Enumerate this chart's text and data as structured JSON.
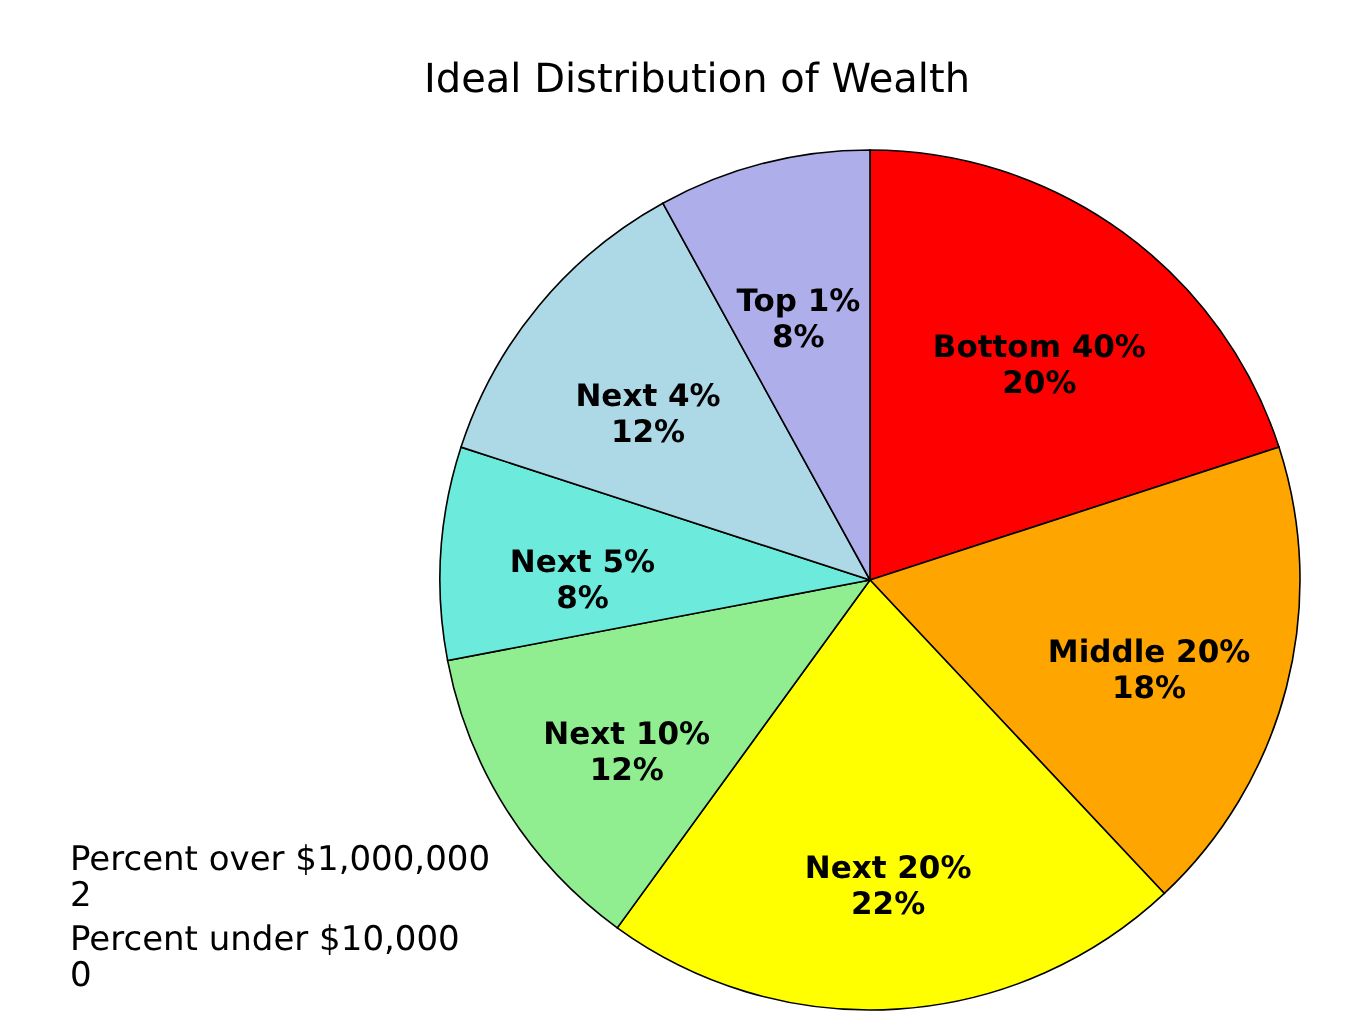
{
  "chart_data": {
    "type": "pie",
    "title": "Ideal Distribution of Wealth",
    "categories": [
      "Bottom 40%",
      "Middle 20%",
      "Next 20%",
      "Next 10%",
      "Next 5%",
      "Next 4%",
      "Top 1%"
    ],
    "values": [
      20,
      18,
      22,
      12,
      8,
      12,
      8
    ],
    "value_labels": [
      "20%",
      "18%",
      "22%",
      "12%",
      "8%",
      "12%",
      "8%"
    ],
    "colors": [
      "#ff0000",
      "#ffa500",
      "#ffff00",
      "#90ee90",
      "#6ceadb",
      "#add8e6",
      "#aeaeea"
    ],
    "annotations": [
      "Percent over $1,000,000\n2",
      "Percent under $10,000\n0"
    ]
  }
}
